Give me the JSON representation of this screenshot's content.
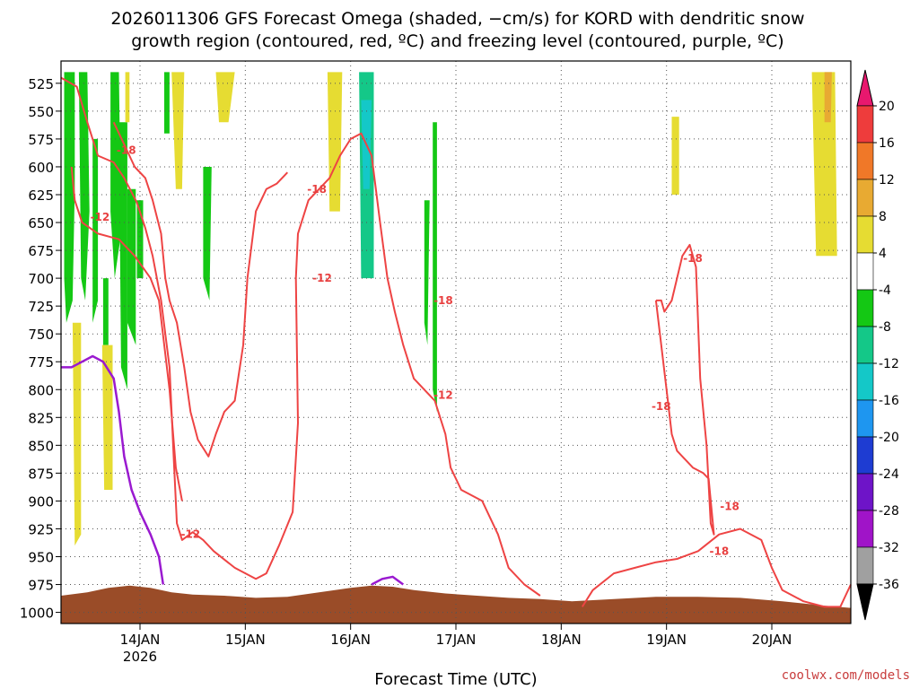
{
  "chart_data": {
    "type": "heatmap",
    "title_lines": [
      "2026011306 GFS Forecast Omega (shaded, −cm/s) for KORD with dendritic snow",
      "growth region (contoured, red, ºC) and freezing level (contoured, purple, ºC)"
    ],
    "xlabel": "Forecast Time (UTC)",
    "x_ticks": [
      {
        "x": 0.5,
        "label": "14JAN",
        "sub": "2026"
      },
      {
        "x": 1.5,
        "label": "15JAN",
        "sub": ""
      },
      {
        "x": 2.5,
        "label": "16JAN",
        "sub": ""
      },
      {
        "x": 3.5,
        "label": "17JAN",
        "sub": ""
      },
      {
        "x": 4.5,
        "label": "18JAN",
        "sub": ""
      },
      {
        "x": 5.5,
        "label": "19JAN",
        "sub": ""
      },
      {
        "x": 6.5,
        "label": "20JAN",
        "sub": ""
      }
    ],
    "xlim": [
      -0.25,
      7.25
    ],
    "ylim": [
      1010,
      505
    ],
    "y_ticks": [
      525,
      550,
      575,
      600,
      625,
      650,
      675,
      700,
      725,
      750,
      775,
      800,
      825,
      850,
      875,
      900,
      925,
      950,
      975,
      1000
    ],
    "grid": true,
    "colorbar": {
      "labels": [
        "20",
        "16",
        "12",
        "8",
        "4",
        "-4",
        "-8",
        "-12",
        "-16",
        "-20",
        "-24",
        "-28",
        "-32",
        "-36"
      ],
      "colors": [
        "#e8186e",
        "#ee3c3c",
        "#f07828",
        "#e8aa32",
        "#e6dc32",
        "#ffffff",
        "#14c814",
        "#14c888",
        "#14c8c8",
        "#1e96f0",
        "#1e3cd2",
        "#6e14c8",
        "#a014c8",
        "#a0a0a0",
        "#000000"
      ]
    },
    "shaded_regions": [
      {
        "color": "#14c814",
        "points": [
          [
            -0.22,
            515
          ],
          [
            -0.12,
            515
          ],
          [
            -0.12,
            620
          ],
          [
            -0.14,
            720
          ],
          [
            -0.2,
            740
          ],
          [
            -0.22,
            700
          ]
        ]
      },
      {
        "color": "#14c814",
        "points": [
          [
            -0.08,
            515
          ],
          [
            0.0,
            515
          ],
          [
            0.02,
            640
          ],
          [
            -0.02,
            720
          ],
          [
            -0.06,
            700
          ]
        ]
      },
      {
        "color": "#14c814",
        "points": [
          [
            0.05,
            575
          ],
          [
            0.1,
            575
          ],
          [
            0.1,
            720
          ],
          [
            0.05,
            740
          ]
        ]
      },
      {
        "color": "#14c814",
        "points": [
          [
            0.22,
            515
          ],
          [
            0.3,
            515
          ],
          [
            0.32,
            660
          ],
          [
            0.26,
            700
          ],
          [
            0.22,
            640
          ]
        ]
      },
      {
        "color": "#14c814",
        "points": [
          [
            0.3,
            560
          ],
          [
            0.38,
            560
          ],
          [
            0.38,
            800
          ],
          [
            0.32,
            780
          ]
        ]
      },
      {
        "color": "#14c814",
        "points": [
          [
            0.38,
            620
          ],
          [
            0.46,
            620
          ],
          [
            0.46,
            760
          ],
          [
            0.38,
            740
          ]
        ]
      },
      {
        "color": "#14c814",
        "points": [
          [
            0.47,
            630
          ],
          [
            0.53,
            630
          ],
          [
            0.53,
            700
          ],
          [
            0.47,
            700
          ]
        ]
      },
      {
        "color": "#14c814",
        "points": [
          [
            0.15,
            700
          ],
          [
            0.2,
            700
          ],
          [
            0.2,
            760
          ],
          [
            0.15,
            760
          ]
        ]
      },
      {
        "color": "#14c814",
        "points": [
          [
            0.73,
            515
          ],
          [
            0.78,
            515
          ],
          [
            0.78,
            570
          ],
          [
            0.73,
            570
          ]
        ]
      },
      {
        "color": "#14c814",
        "points": [
          [
            1.1,
            600
          ],
          [
            1.18,
            600
          ],
          [
            1.16,
            720
          ],
          [
            1.1,
            700
          ]
        ]
      },
      {
        "color": "#14c814",
        "points": [
          [
            3.2,
            630
          ],
          [
            3.25,
            630
          ],
          [
            3.23,
            760
          ],
          [
            3.2,
            740
          ]
        ]
      },
      {
        "color": "#14c814",
        "points": [
          [
            3.28,
            560
          ],
          [
            3.32,
            560
          ],
          [
            3.32,
            820
          ],
          [
            3.28,
            800
          ]
        ]
      },
      {
        "color": "#14c888",
        "points": [
          [
            2.58,
            515
          ],
          [
            2.72,
            515
          ],
          [
            2.72,
            700
          ],
          [
            2.6,
            700
          ]
        ]
      },
      {
        "color": "#14c8c8",
        "points": [
          [
            2.6,
            540
          ],
          [
            2.7,
            540
          ],
          [
            2.68,
            620
          ],
          [
            2.62,
            620
          ]
        ]
      },
      {
        "color": "#e6dc32",
        "points": [
          [
            0.36,
            515
          ],
          [
            0.4,
            515
          ],
          [
            0.4,
            560
          ],
          [
            0.36,
            560
          ]
        ]
      },
      {
        "color": "#e6dc32",
        "points": [
          [
            0.8,
            515
          ],
          [
            0.92,
            515
          ],
          [
            0.9,
            620
          ],
          [
            0.84,
            620
          ]
        ]
      },
      {
        "color": "#e6dc32",
        "points": [
          [
            1.22,
            515
          ],
          [
            1.4,
            515
          ],
          [
            1.34,
            560
          ],
          [
            1.25,
            560
          ]
        ]
      },
      {
        "color": "#e6dc32",
        "points": [
          [
            2.28,
            515
          ],
          [
            2.42,
            515
          ],
          [
            2.4,
            640
          ],
          [
            2.3,
            640
          ]
        ]
      },
      {
        "color": "#e6dc32",
        "points": [
          [
            5.55,
            555
          ],
          [
            5.62,
            555
          ],
          [
            5.62,
            625
          ],
          [
            5.55,
            625
          ]
        ]
      },
      {
        "color": "#e6dc32",
        "points": [
          [
            6.88,
            515
          ],
          [
            7.1,
            515
          ],
          [
            7.12,
            680
          ],
          [
            6.92,
            680
          ]
        ]
      },
      {
        "color": "#e8aa32",
        "points": [
          [
            7.0,
            515
          ],
          [
            7.07,
            515
          ],
          [
            7.06,
            560
          ],
          [
            7.0,
            560
          ]
        ]
      },
      {
        "color": "#e6dc32",
        "points": [
          [
            -0.14,
            740
          ],
          [
            -0.06,
            740
          ],
          [
            -0.06,
            930
          ],
          [
            -0.12,
            940
          ]
        ]
      },
      {
        "color": "#e6dc32",
        "points": [
          [
            0.14,
            760
          ],
          [
            0.24,
            760
          ],
          [
            0.24,
            890
          ],
          [
            0.16,
            890
          ]
        ]
      }
    ],
    "red_contours": [
      {
        "name": "-12 lower",
        "points": [
          [
            -0.25,
            520
          ],
          [
            -0.1,
            528
          ],
          [
            0.0,
            560
          ],
          [
            0.1,
            590
          ],
          [
            0.25,
            596
          ],
          [
            0.35,
            610
          ],
          [
            0.47,
            632
          ],
          [
            0.55,
            655
          ],
          [
            0.62,
            680
          ],
          [
            0.7,
            720
          ],
          [
            0.78,
            780
          ],
          [
            0.82,
            860
          ],
          [
            0.85,
            920
          ],
          [
            0.9,
            935
          ],
          [
            1.0,
            928
          ],
          [
            1.1,
            935
          ],
          [
            1.2,
            945
          ],
          [
            1.4,
            960
          ],
          [
            1.6,
            970
          ],
          [
            1.7,
            965
          ],
          [
            1.82,
            940
          ],
          [
            1.95,
            910
          ],
          [
            2.0,
            830
          ],
          [
            1.98,
            700
          ],
          [
            2.0,
            660
          ],
          [
            2.1,
            630
          ],
          [
            2.2,
            620
          ],
          [
            2.3,
            610
          ],
          [
            2.4,
            590
          ],
          [
            2.5,
            575
          ],
          [
            2.6,
            570
          ],
          [
            2.7,
            590
          ],
          [
            2.78,
            650
          ],
          [
            2.85,
            700
          ],
          [
            2.92,
            730
          ],
          [
            3.0,
            760
          ],
          [
            3.1,
            790
          ],
          [
            3.2,
            800
          ],
          [
            3.3,
            810
          ],
          [
            3.4,
            840
          ],
          [
            3.45,
            870
          ],
          [
            3.55,
            890
          ],
          [
            3.75,
            900
          ],
          [
            3.9,
            930
          ],
          [
            4.0,
            960
          ],
          [
            4.15,
            975
          ],
          [
            4.3,
            985
          ]
        ]
      },
      {
        "name": "-12 upper",
        "points": [
          [
            -0.15,
            600
          ],
          [
            -0.12,
            630
          ],
          [
            -0.05,
            650
          ],
          [
            0.1,
            660
          ],
          [
            0.3,
            665
          ],
          [
            0.45,
            680
          ],
          [
            0.6,
            700
          ],
          [
            0.68,
            720
          ],
          [
            0.78,
            800
          ],
          [
            0.84,
            870
          ],
          [
            0.9,
            900
          ]
        ]
      },
      {
        "name": "-18 mid",
        "points": [
          [
            0.25,
            560
          ],
          [
            0.35,
            580
          ],
          [
            0.45,
            600
          ],
          [
            0.55,
            610
          ],
          [
            0.62,
            630
          ],
          [
            0.7,
            660
          ],
          [
            0.74,
            700
          ],
          [
            0.78,
            720
          ],
          [
            0.85,
            740
          ],
          [
            0.92,
            780
          ],
          [
            0.98,
            820
          ],
          [
            1.05,
            845
          ],
          [
            1.15,
            860
          ],
          [
            1.22,
            840
          ],
          [
            1.3,
            820
          ],
          [
            1.4,
            810
          ],
          [
            1.48,
            760
          ],
          [
            1.52,
            700
          ],
          [
            1.6,
            640
          ],
          [
            1.7,
            620
          ],
          [
            1.8,
            615
          ],
          [
            1.9,
            605
          ]
        ]
      },
      {
        "name": "-18 right loop",
        "points": [
          [
            5.4,
            720
          ],
          [
            5.45,
            720
          ],
          [
            5.48,
            730
          ],
          [
            5.55,
            720
          ],
          [
            5.6,
            700
          ],
          [
            5.65,
            680
          ],
          [
            5.72,
            670
          ],
          [
            5.78,
            690
          ],
          [
            5.82,
            790
          ],
          [
            5.88,
            850
          ],
          [
            5.92,
            920
          ],
          [
            5.95,
            930
          ],
          [
            5.9,
            880
          ],
          [
            5.85,
            875
          ],
          [
            5.75,
            870
          ],
          [
            5.65,
            860
          ],
          [
            5.6,
            855
          ],
          [
            5.55,
            840
          ],
          [
            5.5,
            800
          ],
          [
            5.45,
            760
          ],
          [
            5.4,
            720
          ]
        ]
      },
      {
        "name": "-18 bottom",
        "points": [
          [
            4.7,
            995
          ],
          [
            4.8,
            980
          ],
          [
            5.0,
            965
          ],
          [
            5.2,
            960
          ],
          [
            5.4,
            955
          ],
          [
            5.6,
            952
          ],
          [
            5.8,
            945
          ],
          [
            6.0,
            930
          ],
          [
            6.2,
            925
          ],
          [
            6.4,
            935
          ],
          [
            6.5,
            960
          ],
          [
            6.6,
            980
          ],
          [
            6.8,
            990
          ],
          [
            7.0,
            995
          ],
          [
            7.15,
            995
          ],
          [
            7.25,
            975
          ]
        ]
      }
    ],
    "purple_contour": [
      [
        -0.25,
        780
      ],
      [
        -0.15,
        780
      ],
      [
        -0.05,
        775
      ],
      [
        0.05,
        770
      ],
      [
        0.15,
        775
      ],
      [
        0.25,
        790
      ],
      [
        0.3,
        820
      ],
      [
        0.35,
        860
      ],
      [
        0.42,
        890
      ],
      [
        0.5,
        910
      ],
      [
        0.6,
        930
      ],
      [
        0.68,
        950
      ],
      [
        0.72,
        975
      ]
    ],
    "purple_bump": [
      [
        2.7,
        975
      ],
      [
        2.8,
        970
      ],
      [
        2.9,
        968
      ],
      [
        3.0,
        975
      ]
    ],
    "terrain_top": [
      [
        -0.25,
        985
      ],
      [
        0.0,
        982
      ],
      [
        0.2,
        978
      ],
      [
        0.4,
        976
      ],
      [
        0.6,
        978
      ],
      [
        0.8,
        982
      ],
      [
        1.0,
        984
      ],
      [
        1.3,
        985
      ],
      [
        1.6,
        987
      ],
      [
        1.9,
        986
      ],
      [
        2.2,
        982
      ],
      [
        2.5,
        978
      ],
      [
        2.7,
        976
      ],
      [
        2.9,
        977
      ],
      [
        3.1,
        980
      ],
      [
        3.4,
        983
      ],
      [
        3.7,
        985
      ],
      [
        4.0,
        987
      ],
      [
        4.3,
        988
      ],
      [
        4.6,
        990
      ],
      [
        5.0,
        988
      ],
      [
        5.4,
        986
      ],
      [
        5.8,
        986
      ],
      [
        6.2,
        987
      ],
      [
        6.6,
        990
      ],
      [
        7.0,
        994
      ],
      [
        7.25,
        996
      ]
    ],
    "contour_labels": [
      {
        "x": 0.37,
        "y": 585,
        "text": "-18"
      },
      {
        "x": 0.12,
        "y": 645,
        "text": "-12"
      },
      {
        "x": 2.18,
        "y": 620,
        "text": "-18"
      },
      {
        "x": 2.23,
        "y": 700,
        "text": "-12"
      },
      {
        "x": 3.38,
        "y": 720,
        "text": "-18"
      },
      {
        "x": 3.38,
        "y": 805,
        "text": "-12"
      },
      {
        "x": 0.98,
        "y": 930,
        "text": "-12"
      },
      {
        "x": 5.75,
        "y": 682,
        "text": "-18"
      },
      {
        "x": 5.45,
        "y": 815,
        "text": "-18"
      },
      {
        "x": 6.1,
        "y": 905,
        "text": "-18"
      },
      {
        "x": 6.0,
        "y": 945,
        "text": "-18"
      }
    ],
    "credit": "coolwx.com/models"
  }
}
